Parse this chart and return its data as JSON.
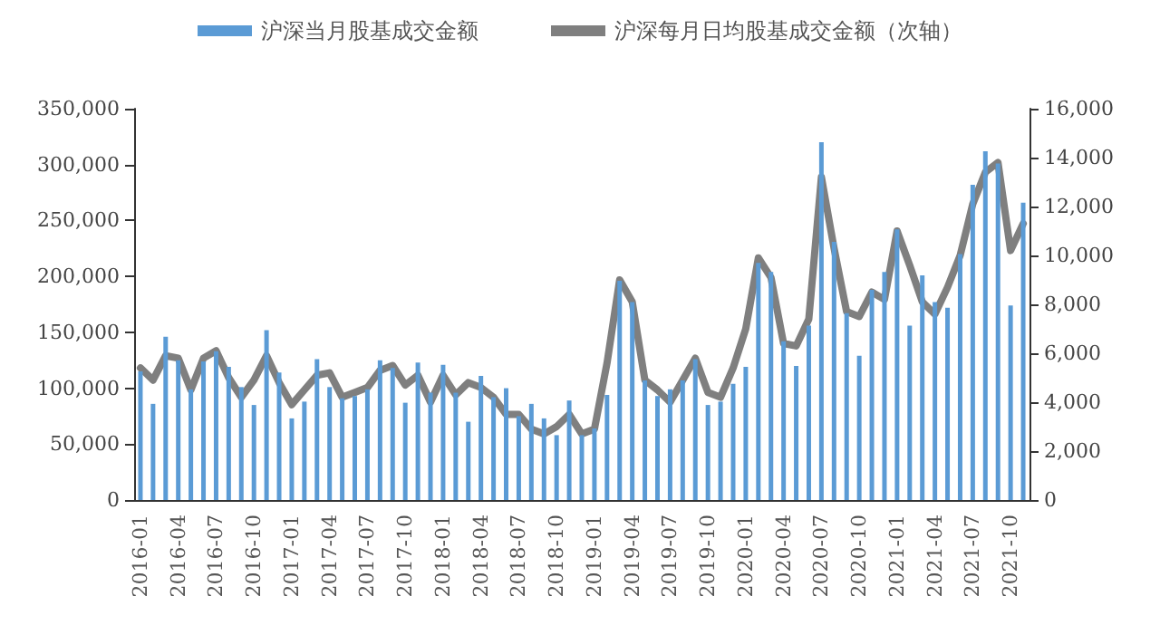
{
  "chart_data": {
    "type": "bar",
    "categories": [
      "2016-01",
      null,
      null,
      "2016-04",
      null,
      null,
      "2016-07",
      null,
      null,
      "2016-10",
      null,
      null,
      "2017-01",
      null,
      null,
      "2017-04",
      null,
      null,
      "2017-07",
      null,
      null,
      "2017-10",
      null,
      null,
      "2018-01",
      null,
      null,
      "2018-04",
      null,
      null,
      "2018-07",
      null,
      null,
      "2018-10",
      null,
      null,
      "2019-01",
      null,
      null,
      "2019-04",
      null,
      null,
      "2019-07",
      null,
      null,
      "2019-10",
      null,
      null,
      "2020-01",
      null,
      null,
      "2020-04",
      null,
      null,
      "2020-07",
      null,
      null,
      "2020-10",
      null,
      null,
      "2021-01",
      null,
      null,
      "2021-04",
      null,
      null,
      "2021-07",
      null,
      null,
      "2021-10",
      null
    ],
    "series": [
      {
        "name": "沪深当月股基成交金额",
        "color": "#5b9bd5",
        "values": [
          115000,
          86000,
          146000,
          125000,
          99000,
          124000,
          133000,
          119000,
          101000,
          85000,
          152000,
          114000,
          73000,
          88000,
          126000,
          101000,
          91000,
          93000,
          99000,
          125000,
          118000,
          87000,
          123000,
          96000,
          121000,
          96000,
          70000,
          111000,
          92000,
          100000,
          75000,
          86000,
          73000,
          58000,
          89000,
          58000,
          64000,
          94000,
          196000,
          177000,
          107000,
          93000,
          99000,
          107000,
          126000,
          85000,
          88000,
          104000,
          119000,
          212000,
          204000,
          142000,
          120000,
          156000,
          320000,
          231000,
          167000,
          129000,
          188000,
          204000,
          242000,
          156000,
          201000,
          177000,
          172000,
          220000,
          282000,
          312000,
          301000,
          174000,
          266000
        ]
      },
      {
        "name": "沪深每月日均股基成交金额（次轴）",
        "type": "line",
        "axis": "y2",
        "color": "#7f7f7f",
        "values": [
          5400,
          4900,
          5900,
          5800,
          4500,
          5800,
          6100,
          5000,
          4200,
          4900,
          5900,
          4800,
          3900,
          4500,
          5100,
          5200,
          4200,
          4400,
          4600,
          5300,
          5500,
          4700,
          5100,
          4000,
          5100,
          4300,
          4800,
          4600,
          4200,
          3500,
          3500,
          2900,
          2700,
          3000,
          3500,
          2700,
          2900,
          5600,
          9000,
          8100,
          4900,
          4500,
          4000,
          4900,
          5800,
          4400,
          4200,
          5400,
          7000,
          9900,
          9100,
          6400,
          6300,
          7400,
          13200,
          10300,
          7700,
          7500,
          8500,
          8200,
          11000,
          9600,
          8100,
          7600,
          8700,
          10000,
          12100,
          13400,
          13800,
          10200,
          11300
        ]
      }
    ],
    "ylim": [
      0,
      350000
    ],
    "yticks": [
      0,
      {
        "value": 50000,
        "label": "50,000"
      },
      {
        "value": 100000,
        "label": "100,000"
      },
      {
        "value": 150000,
        "label": "150,000"
      },
      {
        "value": 200000,
        "label": "200,000"
      },
      {
        "value": 250000,
        "label": "250,000"
      },
      {
        "value": 300000,
        "label": "300,000"
      },
      {
        "value": 350000,
        "label": "350,000"
      }
    ],
    "y2lim": [
      0,
      16000
    ],
    "y2ticks": [
      0,
      {
        "value": 2000,
        "label": "2,000"
      },
      {
        "value": 4000,
        "label": "4,000"
      },
      {
        "value": 6000,
        "label": "6,000"
      },
      {
        "value": 8000,
        "label": "8,000"
      },
      {
        "value": 10000,
        "label": "10,000"
      },
      {
        "value": 12000,
        "label": "12,000"
      },
      {
        "value": 14000,
        "label": "14,000"
      },
      {
        "value": 16000,
        "label": "16,000"
      }
    ],
    "legend": "top",
    "grid": false,
    "marker": "none",
    "line_style": "solid"
  }
}
